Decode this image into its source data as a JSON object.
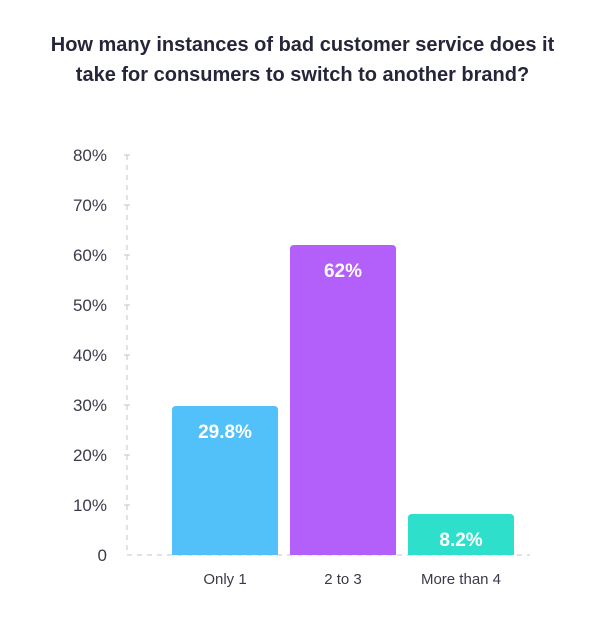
{
  "chart_data": {
    "type": "bar",
    "title": "How many instances of bad customer service does it take for consumers to switch to another brand?",
    "title_lines": [
      "How many instances of bad customer service does it",
      "take for consumers to switch to another brand?"
    ],
    "categories": [
      "Only 1",
      "2 to 3",
      "More than 4"
    ],
    "values": [
      29.8,
      62,
      8.2
    ],
    "data_labels": [
      "29.8%",
      "62%",
      "8.2%"
    ],
    "colors": [
      "#52c1fa",
      "#b360fb",
      "#2ee0cc"
    ],
    "ylim": [
      0,
      80
    ],
    "yticks": [
      0,
      10,
      20,
      30,
      40,
      50,
      60,
      70,
      80
    ],
    "ytick_labels": [
      "0",
      "10%",
      "20%",
      "30%",
      "40%",
      "50%",
      "60%",
      "70%",
      "80%"
    ],
    "grid": false,
    "legend": "none"
  }
}
